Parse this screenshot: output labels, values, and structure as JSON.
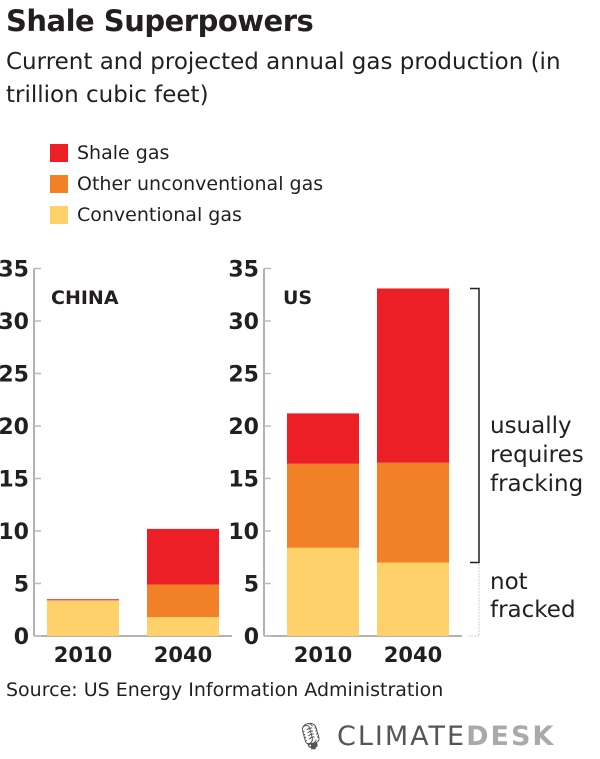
{
  "title": "Shale Superpowers",
  "subtitle": "Current and projected annual gas production (in trillion cubic feet)",
  "legend": [
    {
      "label": "Shale gas",
      "color": "#ec1f27"
    },
    {
      "label": "Other unconventional gas",
      "color": "#f28026"
    },
    {
      "label": "Conventional gas",
      "color": "#fed16a"
    }
  ],
  "source": "Source: US Energy Information Administration",
  "logo": {
    "text1": "CLIMATE",
    "text2": "DESK"
  },
  "chart_data": [
    {
      "type": "bar",
      "stacked": true,
      "panel_label": "CHINA",
      "categories": [
        "2010",
        "2040"
      ],
      "ylim": [
        0,
        35
      ],
      "yticks": [
        0,
        5,
        10,
        15,
        20,
        25,
        30,
        35
      ],
      "series": [
        {
          "name": "Conventional gas",
          "values": [
            3.4,
            1.8
          ]
        },
        {
          "name": "Other unconventional gas",
          "values": [
            0,
            3.1
          ]
        },
        {
          "name": "Shale gas",
          "values": [
            0.1,
            5.3
          ]
        }
      ]
    },
    {
      "type": "bar",
      "stacked": true,
      "panel_label": "US",
      "categories": [
        "2010",
        "2040"
      ],
      "ylim": [
        0,
        35
      ],
      "yticks": [
        0,
        5,
        10,
        15,
        20,
        25,
        30,
        35
      ],
      "series": [
        {
          "name": "Conventional gas",
          "values": [
            8.4,
            7.0
          ]
        },
        {
          "name": "Other unconventional gas",
          "values": [
            8.0,
            9.5
          ]
        },
        {
          "name": "Shale gas",
          "values": [
            4.8,
            16.6
          ]
        }
      ],
      "annotations": [
        "usually requires fracking",
        "not fracked"
      ]
    }
  ]
}
